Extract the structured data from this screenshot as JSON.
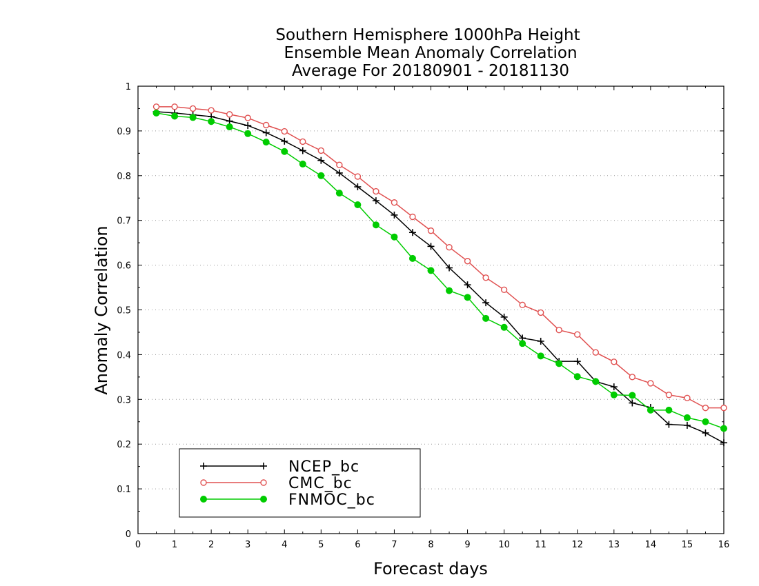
{
  "chart_data": {
    "type": "line",
    "title_lines": [
      "Southern Hemisphere 1000hPa Height",
      "Ensemble Mean Anomaly Correlation",
      "Average For 20180901 - 20181130"
    ],
    "xlabel": "Forecast days",
    "ylabel": "Anomaly Correlation",
    "xlim": [
      0,
      16
    ],
    "ylim": [
      0,
      1
    ],
    "x_ticks": [
      "0",
      "1",
      "2",
      "3",
      "4",
      "5",
      "6",
      "7",
      "8",
      "9",
      "10",
      "11",
      "12",
      "13",
      "14",
      "15",
      "16"
    ],
    "y_ticks": [
      "0",
      "0.1",
      "0.2",
      "0.3",
      "0.4",
      "0.5",
      "0.6",
      "0.7",
      "0.8",
      "0.9",
      "1"
    ],
    "grid": "horizontal-dotted",
    "legend_position": "bottom-left",
    "x": [
      0.5,
      1,
      1.5,
      2,
      2.5,
      3,
      3.5,
      4,
      4.5,
      5,
      5.5,
      6,
      6.5,
      7,
      7.5,
      8,
      8.5,
      9,
      9.5,
      10,
      10.5,
      11,
      11.5,
      12,
      12.5,
      13,
      13.5,
      14,
      14.5,
      15,
      15.5,
      16
    ],
    "series": [
      {
        "name": "NCEP_bc",
        "color": "#000000",
        "marker": "plus",
        "values": [
          0.943,
          0.94,
          0.936,
          0.932,
          0.922,
          0.912,
          0.896,
          0.877,
          0.856,
          0.834,
          0.806,
          0.775,
          0.744,
          0.712,
          0.673,
          0.642,
          0.594,
          0.556,
          0.516,
          0.484,
          0.437,
          0.43,
          0.385,
          0.385,
          0.34,
          0.328,
          0.292,
          0.282,
          0.244,
          0.242,
          0.225,
          0.203
        ]
      },
      {
        "name": "CMC_bc",
        "color": "#e05050",
        "marker": "open-circle",
        "values": [
          0.954,
          0.954,
          0.95,
          0.946,
          0.937,
          0.929,
          0.913,
          0.899,
          0.876,
          0.856,
          0.824,
          0.798,
          0.765,
          0.74,
          0.708,
          0.677,
          0.64,
          0.609,
          0.572,
          0.545,
          0.511,
          0.494,
          0.455,
          0.445,
          0.405,
          0.384,
          0.35,
          0.336,
          0.31,
          0.303,
          0.281,
          0.281
        ]
      },
      {
        "name": "FNMOC_bc",
        "color": "#00cc00",
        "marker": "filled-circle",
        "values": [
          0.94,
          0.933,
          0.93,
          0.921,
          0.909,
          0.894,
          0.875,
          0.854,
          0.826,
          0.8,
          0.761,
          0.735,
          0.69,
          0.663,
          0.615,
          0.588,
          0.543,
          0.528,
          0.481,
          0.461,
          0.425,
          0.397,
          0.38,
          0.351,
          0.34,
          0.31,
          0.309,
          0.276,
          0.276,
          0.259,
          0.25,
          0.235
        ]
      }
    ]
  }
}
